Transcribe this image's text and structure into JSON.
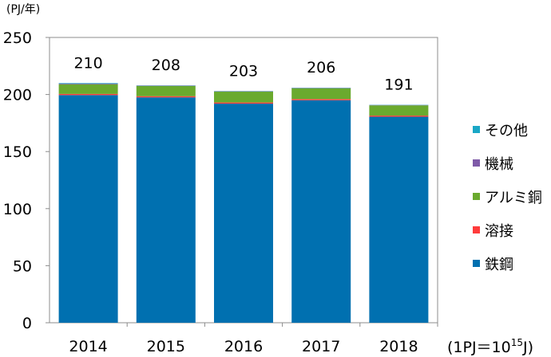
{
  "chart_data": {
    "type": "bar",
    "stacked": true,
    "y_unit": "(PJ/年)",
    "note": "(1PJ＝10",
    "note_sup": "15",
    "note_end": "J)",
    "categories": [
      "2014",
      "2015",
      "2016",
      "2017",
      "2018"
    ],
    "ylim": [
      0,
      250
    ],
    "yticks": [
      0,
      50,
      100,
      150,
      200,
      250
    ],
    "totals": [
      "210",
      "208",
      "203",
      "206",
      "191"
    ],
    "series": [
      {
        "name": "鉄鋼",
        "color": "#0070b0",
        "values": [
          199.5,
          197.5,
          192,
          195,
          180.5
        ]
      },
      {
        "name": "溶接",
        "color": "#ff3b3b",
        "values": [
          1,
          1,
          1,
          1,
          1
        ]
      },
      {
        "name": "アルミ銅",
        "color": "#6aaa2e",
        "values": [
          8.5,
          9,
          9.5,
          9.5,
          9
        ]
      },
      {
        "name": "機械",
        "color": "#7f5aa8",
        "values": [
          0.5,
          0.3,
          0.3,
          0.3,
          0.3
        ]
      },
      {
        "name": "その他",
        "color": "#1aa7c6",
        "values": [
          0.5,
          0.2,
          0.2,
          0.2,
          0.2
        ]
      }
    ],
    "legend_order": [
      "その他",
      "機械",
      "アルミ銅",
      "溶接",
      "鉄鋼"
    ],
    "legend_position": "right",
    "grid": false
  }
}
